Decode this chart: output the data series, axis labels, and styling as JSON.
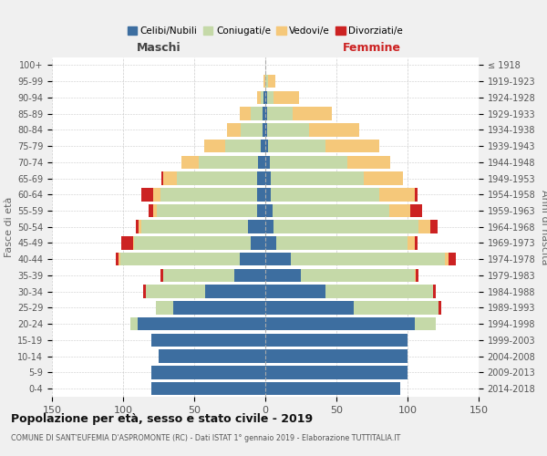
{
  "age_groups": [
    "0-4",
    "5-9",
    "10-14",
    "15-19",
    "20-24",
    "25-29",
    "30-34",
    "35-39",
    "40-44",
    "45-49",
    "50-54",
    "55-59",
    "60-64",
    "65-69",
    "70-74",
    "75-79",
    "80-84",
    "85-89",
    "90-94",
    "95-99",
    "100+"
  ],
  "birth_years": [
    "2014-2018",
    "2009-2013",
    "2004-2008",
    "1999-2003",
    "1994-1998",
    "1989-1993",
    "1984-1988",
    "1979-1983",
    "1974-1978",
    "1969-1973",
    "1964-1968",
    "1959-1963",
    "1954-1958",
    "1949-1953",
    "1944-1948",
    "1939-1943",
    "1934-1938",
    "1929-1933",
    "1924-1928",
    "1919-1923",
    "≤ 1918"
  ],
  "males": {
    "celibe": [
      80,
      80,
      75,
      80,
      90,
      65,
      42,
      22,
      18,
      10,
      12,
      6,
      6,
      6,
      5,
      3,
      2,
      2,
      1,
      0,
      0
    ],
    "coniugato": [
      0,
      0,
      0,
      0,
      5,
      12,
      42,
      50,
      84,
      82,
      75,
      70,
      68,
      56,
      42,
      25,
      15,
      8,
      2,
      0,
      0
    ],
    "vedovo": [
      0,
      0,
      0,
      0,
      0,
      0,
      0,
      0,
      1,
      1,
      2,
      3,
      5,
      10,
      12,
      15,
      10,
      8,
      3,
      1,
      0
    ],
    "divorziato": [
      0,
      0,
      0,
      0,
      0,
      0,
      2,
      2,
      2,
      8,
      2,
      3,
      8,
      1,
      0,
      0,
      0,
      0,
      0,
      0,
      0
    ]
  },
  "females": {
    "nubile": [
      95,
      100,
      100,
      100,
      105,
      62,
      42,
      25,
      18,
      8,
      6,
      5,
      4,
      4,
      3,
      2,
      1,
      1,
      1,
      0,
      0
    ],
    "coniugata": [
      0,
      0,
      0,
      0,
      15,
      60,
      76,
      80,
      108,
      92,
      102,
      82,
      76,
      65,
      55,
      40,
      30,
      18,
      5,
      2,
      0
    ],
    "vedova": [
      0,
      0,
      0,
      0,
      0,
      0,
      0,
      1,
      3,
      5,
      8,
      15,
      25,
      28,
      30,
      38,
      35,
      28,
      18,
      5,
      0
    ],
    "divorziata": [
      0,
      0,
      0,
      0,
      0,
      2,
      2,
      2,
      5,
      2,
      5,
      8,
      2,
      0,
      0,
      0,
      0,
      0,
      0,
      0,
      0
    ]
  },
  "colors": {
    "celibe": "#3d6ea0",
    "coniugato": "#c5d9a8",
    "vedovo": "#f5c87a",
    "divorziato": "#cc2222"
  },
  "legend_labels": [
    "Celibi/Nubili",
    "Coniugati/e",
    "Vedovi/e",
    "Divorziati/e"
  ],
  "title": "Popolazione per età, sesso e stato civile - 2019",
  "subtitle": "COMUNE DI SANT'EUFEMIA D'ASPROMONTE (RC) - Dati ISTAT 1° gennaio 2019 - Elaborazione TUTTITALIA.IT",
  "label_maschi": "Maschi",
  "label_femmine": "Femmine",
  "ylabel_left": "Fasce di età",
  "ylabel_right": "Anni di nascita",
  "xlim": 150,
  "background_color": "#f0f0f0",
  "plot_bg_color": "#ffffff"
}
